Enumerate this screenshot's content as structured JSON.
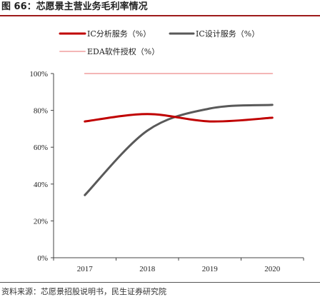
{
  "figure": {
    "title": "图 66：芯愿景主营业务毛利率情况",
    "source": "资料来源：芯愿景招股说明书，民生证券研究院"
  },
  "chart_data": {
    "type": "line",
    "x": [
      "2017",
      "2018",
      "2019",
      "2020"
    ],
    "ylim": [
      0,
      100
    ],
    "yticks": [
      0,
      20,
      40,
      60,
      80,
      100
    ],
    "ytick_labels": [
      "0%",
      "20%",
      "40%",
      "60%",
      "80%",
      "100%"
    ],
    "legend_position": "top",
    "series": [
      {
        "name": "IC分析服务（%）",
        "color": "#c00000",
        "values": [
          74,
          78,
          74,
          76
        ]
      },
      {
        "name": "IC设计服务（%）",
        "color": "#595959",
        "values": [
          34,
          69,
          81,
          83
        ]
      },
      {
        "name": "EDA软件授权（%）",
        "color": "#f4b6b6",
        "values": [
          100,
          100,
          100,
          100
        ]
      }
    ]
  }
}
